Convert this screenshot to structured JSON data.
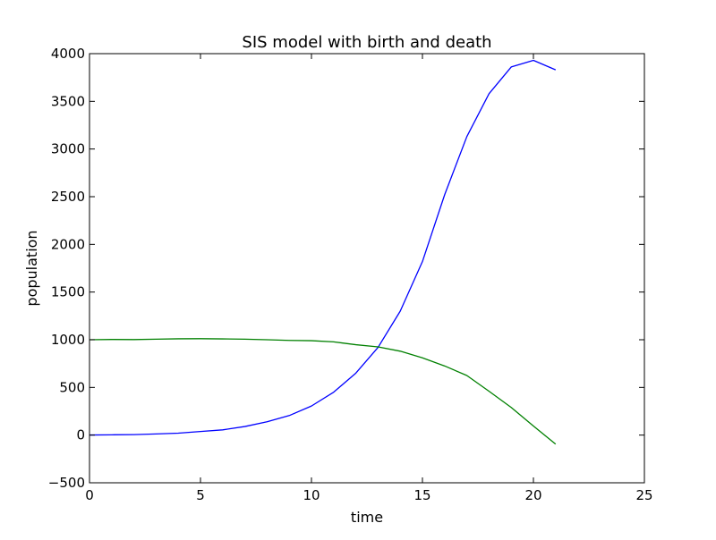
{
  "chart_data": {
    "type": "line",
    "title": "SIS model with birth and death",
    "xlabel": "time",
    "ylabel": "population",
    "xlim": [
      0,
      25
    ],
    "ylim": [
      -500,
      4000
    ],
    "xticks": [
      "0",
      "5",
      "10",
      "15",
      "20",
      "25"
    ],
    "yticks": [
      "−500",
      "0",
      "500",
      "1000",
      "1500",
      "2000",
      "2500",
      "3000",
      "3500",
      "4000"
    ],
    "grid": false,
    "legend": "none",
    "x": [
      0,
      1,
      2,
      3,
      4,
      5,
      6,
      7,
      8,
      9,
      10,
      11,
      12,
      13,
      14,
      15,
      16,
      17,
      18,
      19,
      20,
      21
    ],
    "series": [
      {
        "color": "#0000ff",
        "values": [
          1,
          3,
          5,
          12,
          20,
          38,
          55,
          90,
          140,
          205,
          305,
          450,
          650,
          920,
          1300,
          1820,
          2520,
          3130,
          3580,
          3860,
          3930,
          3830
        ]
      },
      {
        "color": "#008000",
        "values": [
          1000,
          1003,
          1002,
          1006,
          1010,
          1011,
          1009,
          1006,
          1000,
          993,
          990,
          978,
          948,
          925,
          880,
          810,
          725,
          625,
          460,
          290,
          95,
          -95
        ]
      }
    ]
  }
}
